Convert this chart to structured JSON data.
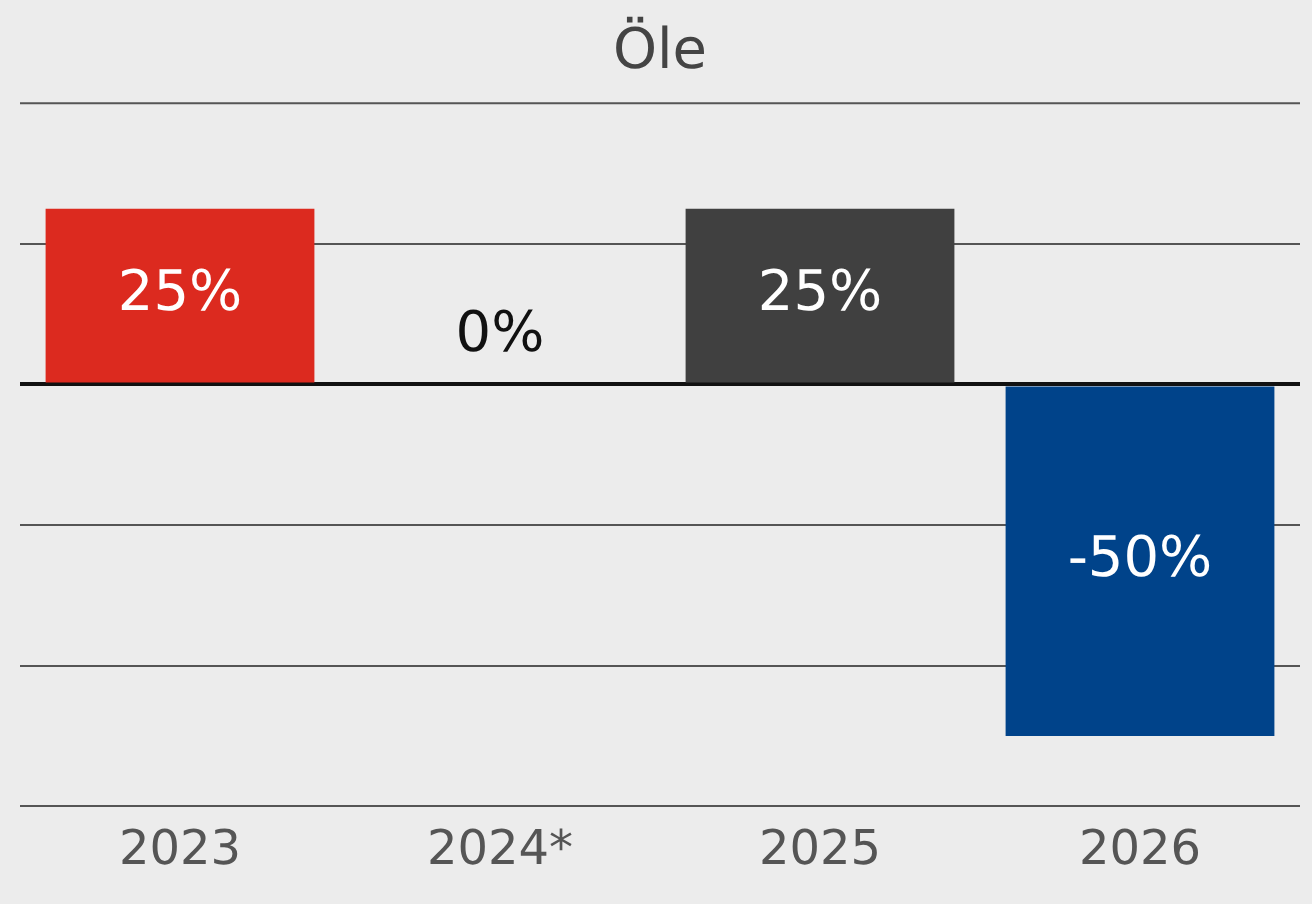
{
  "chart_data": {
    "type": "bar",
    "title": "Öle",
    "categories": [
      "2023",
      "2024*",
      "2025",
      "2026"
    ],
    "values": [
      25,
      0,
      25,
      -50
    ],
    "colors": [
      "#dc2a1f",
      "#404040",
      "#404040",
      "#00438a"
    ],
    "value_labels": [
      "25%",
      "0%",
      "25%",
      "-50%"
    ],
    "ylim": [
      -60,
      40
    ],
    "yticks": [
      {
        "value": -60,
        "label": null
      },
      {
        "value": -40,
        "label": null
      },
      {
        "value": -20,
        "label": null
      },
      {
        "value": 0,
        "label": null
      },
      {
        "value": 20,
        "label": null
      }
    ],
    "grid": "y",
    "legend": false,
    "tick_labels": "x"
  }
}
